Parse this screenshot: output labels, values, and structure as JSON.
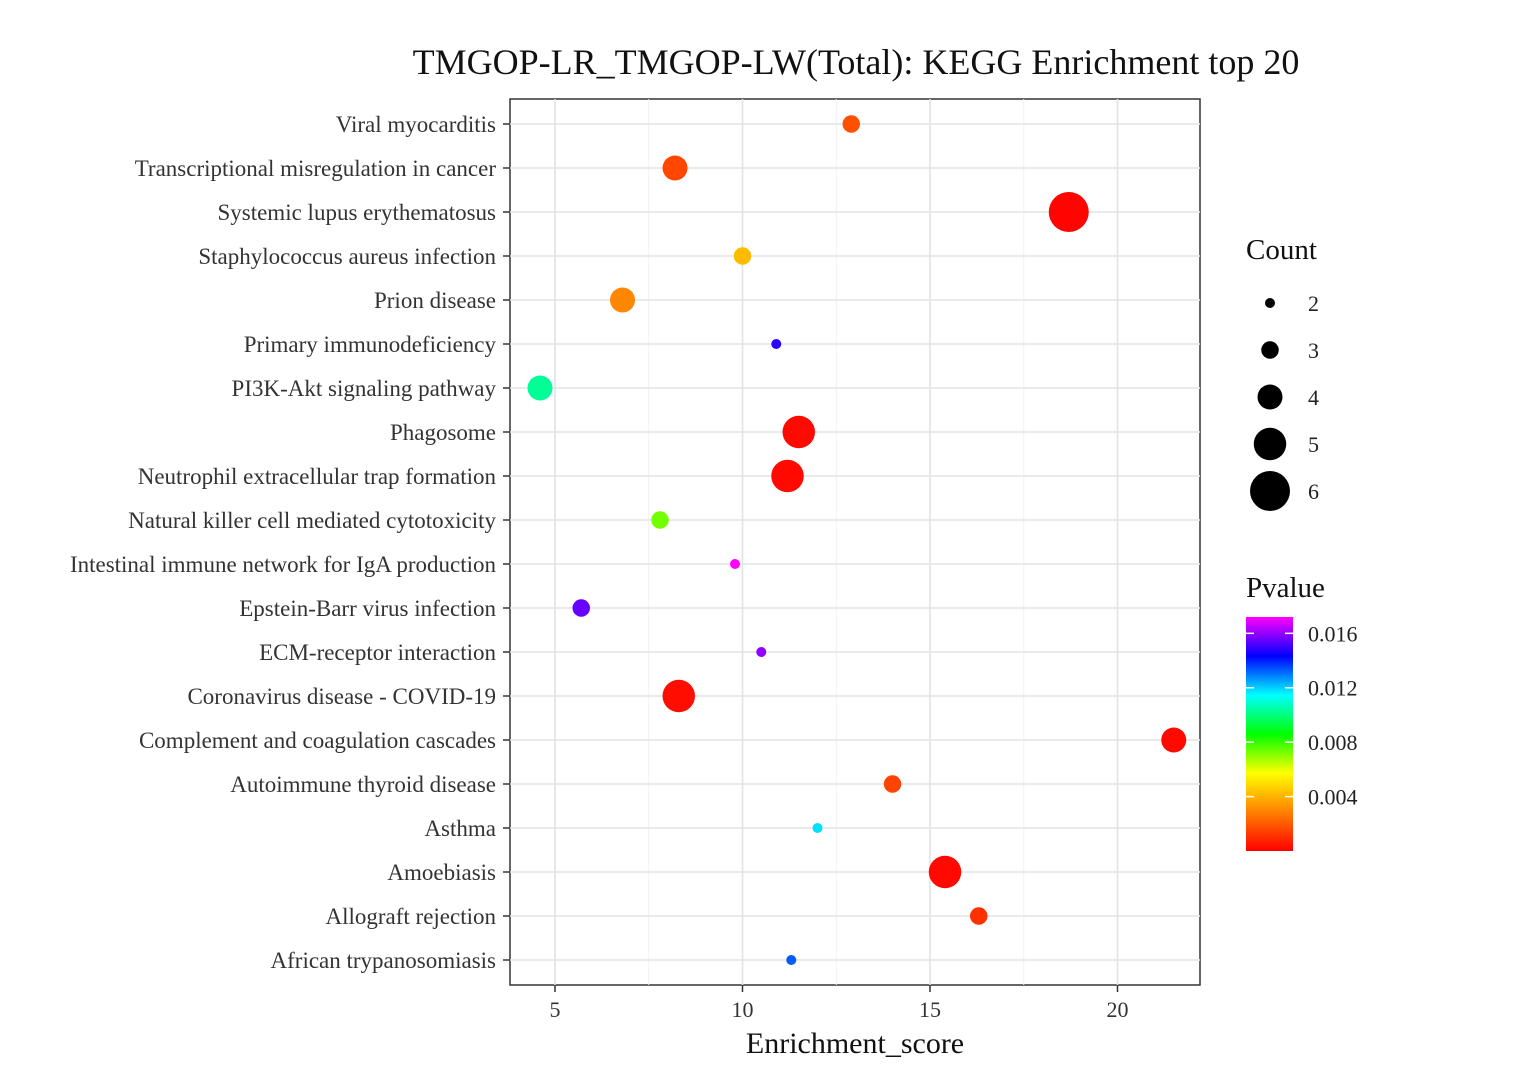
{
  "chart_data": {
    "type": "scatter",
    "title": "TMGOP-LR_TMGOP-LW(Total): KEGG Enrichment top 20",
    "xlabel": "Enrichment_score",
    "ylabel": "",
    "xlim": [
      3.8,
      22.2
    ],
    "xticks": [
      5,
      10,
      15,
      20
    ],
    "grid": true,
    "legend_placement": "right",
    "size_legend": {
      "title": "Count",
      "values": [
        2,
        3,
        4,
        5,
        6
      ]
    },
    "color_legend": {
      "title": "Pvalue",
      "range": [
        0,
        0.0172
      ],
      "ticks": [
        0.016,
        0.012,
        0.008,
        0.004
      ],
      "tick_labels": [
        "0.016",
        "0.012",
        "0.008",
        "0.004"
      ],
      "colors_low_to_high": [
        "#ff0000",
        "#ff8000",
        "#ffff00",
        "#00ff00",
        "#00ffff",
        "#0000ff",
        "#ff00ff"
      ]
    },
    "categories": [
      "Viral myocarditis",
      "Transcriptional misregulation in cancer",
      "Systemic lupus erythematosus",
      "Staphylococcus aureus infection",
      "Prion disease",
      "Primary immunodeficiency",
      "PI3K-Akt signaling pathway",
      "Phagosome",
      "Neutrophil extracellular trap formation",
      "Natural killer cell mediated cytotoxicity",
      "Intestinal immune network for IgA production",
      "Epstein-Barr virus infection",
      "ECM-receptor interaction",
      "Coronavirus disease - COVID-19",
      "Complement and coagulation cascades",
      "Autoimmune thyroid disease",
      "Asthma",
      "Amoebiasis",
      "Allograft rejection",
      "African trypanosomiasis"
    ],
    "points": [
      {
        "term": "Viral myocarditis",
        "x": 12.9,
        "count": 3,
        "pvalue": 0.0018
      },
      {
        "term": "Transcriptional misregulation in cancer",
        "x": 8.2,
        "count": 4,
        "pvalue": 0.0016
      },
      {
        "term": "Systemic lupus erythematosus",
        "x": 18.7,
        "count": 6,
        "pvalue": 0.0001
      },
      {
        "term": "Staphylococcus aureus infection",
        "x": 10.0,
        "count": 3,
        "pvalue": 0.0042
      },
      {
        "term": "Prion disease",
        "x": 6.8,
        "count": 4,
        "pvalue": 0.003
      },
      {
        "term": "Primary immunodeficiency",
        "x": 10.9,
        "count": 2,
        "pvalue": 0.0148
      },
      {
        "term": "PI3K-Akt signaling pathway",
        "x": 4.6,
        "count": 4,
        "pvalue": 0.0103
      },
      {
        "term": "Phagosome",
        "x": 11.5,
        "count": 5,
        "pvalue": 0.0002
      },
      {
        "term": "Neutrophil extracellular trap formation",
        "x": 11.2,
        "count": 5,
        "pvalue": 0.0002
      },
      {
        "term": "Natural killer cell mediated cytotoxicity",
        "x": 7.8,
        "count": 3,
        "pvalue": 0.0073
      },
      {
        "term": "Intestinal immune network for IgA production",
        "x": 9.8,
        "count": 2,
        "pvalue": 0.0172
      },
      {
        "term": "Epstein-Barr virus infection",
        "x": 5.7,
        "count": 3,
        "pvalue": 0.0155
      },
      {
        "term": "ECM-receptor interaction",
        "x": 10.5,
        "count": 2,
        "pvalue": 0.016
      },
      {
        "term": "Coronavirus disease - COVID-19",
        "x": 8.3,
        "count": 5,
        "pvalue": 0.0003
      },
      {
        "term": "Complement and coagulation cascades",
        "x": 21.5,
        "count": 4,
        "pvalue": 0.0002
      },
      {
        "term": "Autoimmune thyroid disease",
        "x": 14.0,
        "count": 3,
        "pvalue": 0.0015
      },
      {
        "term": "Asthma",
        "x": 12.0,
        "count": 2,
        "pvalue": 0.0118
      },
      {
        "term": "Amoebiasis",
        "x": 15.4,
        "count": 5,
        "pvalue": 0.0002
      },
      {
        "term": "Allograft rejection",
        "x": 16.3,
        "count": 3,
        "pvalue": 0.0011
      },
      {
        "term": "African trypanosomiasis",
        "x": 11.3,
        "count": 2,
        "pvalue": 0.0133
      }
    ]
  }
}
